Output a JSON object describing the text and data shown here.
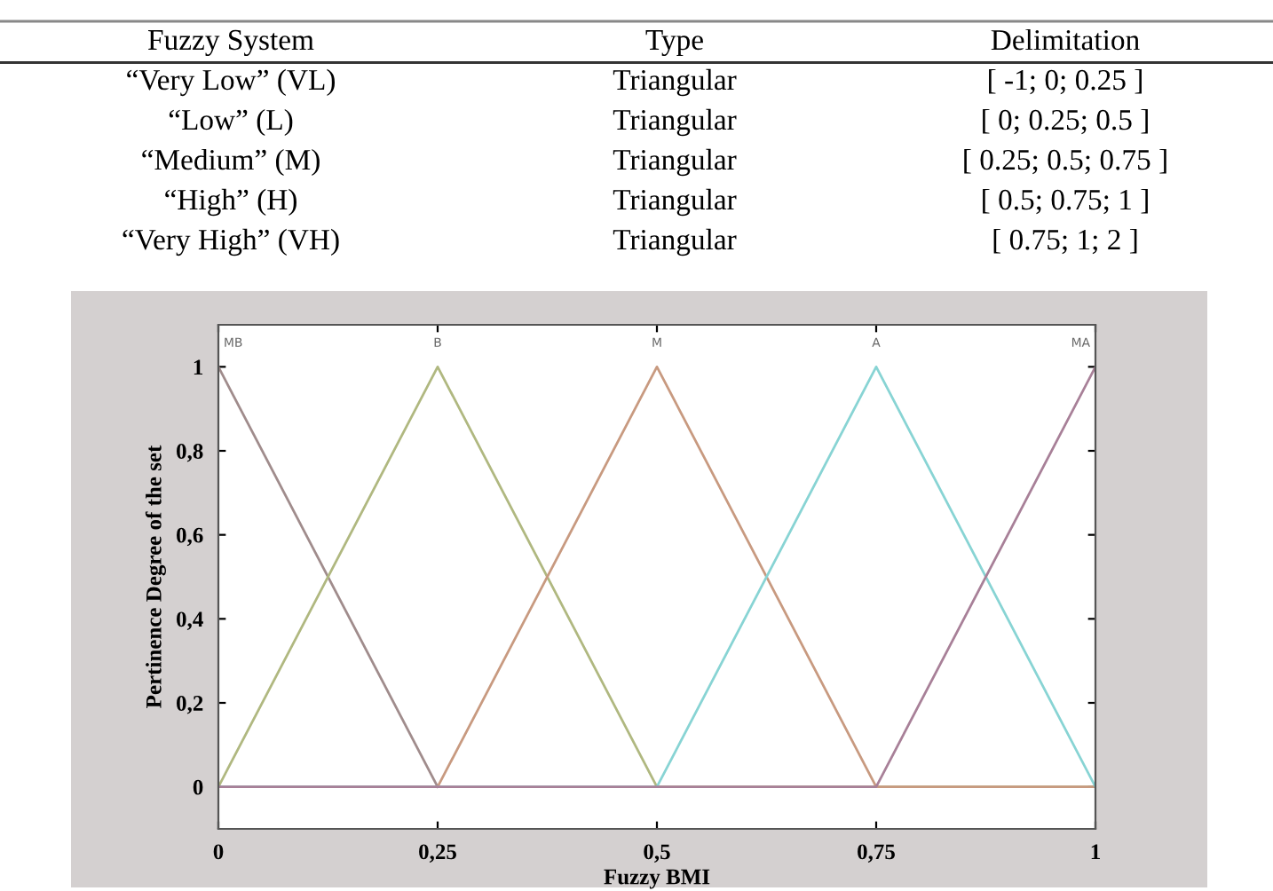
{
  "chart_data": [
    {
      "type": "other",
      "annotations": [
        "Fuzzy System",
        "Type",
        "Delimitation",
        "“Very Low” (VL)",
        "Triangular",
        "[ -1; 0; 0.25 ]",
        "“Low” (L)",
        "Triangular",
        "[ 0; 0.25; 0.5 ]",
        "“Medium” (M)",
        "Triangular",
        "[ 0.25; 0.5; 0.75 ]",
        "“High” (H)",
        "Triangular",
        "[ 0.5; 0.75; 1 ]",
        "“Very High” (VH)",
        "Triangular",
        "[ 0.75; 1; 2 ]"
      ]
    },
    {
      "type": "line",
      "xlabel": "Fuzzy BMI",
      "ylabel": "Pertinence Degree of the set",
      "xlim": [
        0,
        1
      ],
      "ylim": [
        -0.1,
        1.1
      ],
      "xticks": [
        0,
        {
          "value": 0.25,
          "label": "0,25"
        },
        {
          "value": 0.5,
          "label": "0,5"
        },
        {
          "value": 0.75,
          "label": "0,75"
        },
        1
      ],
      "yticks": [
        0,
        {
          "value": 0.2,
          "label": "0,2"
        },
        {
          "value": 0.4,
          "label": "0,4"
        },
        {
          "value": 0.6,
          "label": "0,6"
        },
        {
          "value": 0.8,
          "label": "0,8"
        },
        1
      ],
      "grid": false,
      "legend": false,
      "marker": "none",
      "line_style": "solid",
      "series": [
        {
          "name": "MB",
          "color": "#a08c8c",
          "x": [
            0,
            0.25
          ],
          "values": [
            1,
            0
          ]
        },
        {
          "name": "B",
          "color": "#b0b880",
          "x": [
            0,
            0.25,
            0.5,
            1
          ],
          "values": [
            0,
            1,
            0,
            0
          ]
        },
        {
          "name": "M",
          "color": "#c89a80",
          "x": [
            0,
            0.25,
            0.5,
            0.75,
            1
          ],
          "values": [
            0,
            0,
            1,
            0,
            0
          ]
        },
        {
          "name": "A",
          "color": "#88d4d4",
          "x": [
            0,
            0.5,
            0.75,
            1
          ],
          "values": [
            0,
            0,
            1,
            0
          ]
        },
        {
          "name": "MA",
          "color": "#a88098",
          "x": [
            0,
            0.75,
            1
          ],
          "values": [
            0,
            0,
            1
          ]
        }
      ]
    }
  ]
}
